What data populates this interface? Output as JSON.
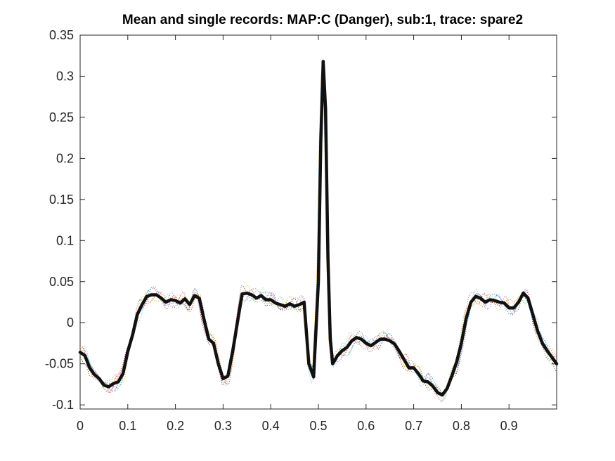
{
  "chart_data": {
    "type": "line",
    "title": "Mean and single records: MAP:C (Danger), sub:1, trace: spare2",
    "xlabel": "",
    "ylabel": "",
    "xlim": [
      0,
      1
    ],
    "ylim": [
      -0.105,
      0.35
    ],
    "grid": false,
    "legend": "none",
    "x_ticks": [
      0,
      0.1,
      0.2,
      0.3,
      0.4,
      0.5,
      0.6,
      0.7,
      0.8,
      0.9
    ],
    "x_tick_labels": [
      "0",
      "0.1",
      "0.2",
      "0.3",
      "0.4",
      "0.5",
      "0.6",
      "0.7",
      "0.8",
      "0.9"
    ],
    "y_ticks": [
      -0.1,
      -0.05,
      0,
      0.05,
      0.1,
      0.15,
      0.2,
      0.25,
      0.3,
      0.35
    ],
    "y_tick_labels": [
      "-0.1",
      "-0.05",
      "0",
      "0.05",
      "0.1",
      "0.15",
      "0.2",
      "0.25",
      "0.3",
      "0.35"
    ],
    "series": [
      {
        "style": "thick-solid",
        "color": "#111111",
        "x": [
          0,
          0.01,
          0.02,
          0.03,
          0.04,
          0.05,
          0.06,
          0.07,
          0.08,
          0.09,
          0.1,
          0.11,
          0.12,
          0.13,
          0.14,
          0.15,
          0.16,
          0.17,
          0.18,
          0.19,
          0.2,
          0.21,
          0.22,
          0.23,
          0.24,
          0.25,
          0.26,
          0.27,
          0.28,
          0.29,
          0.3,
          0.31,
          0.32,
          0.33,
          0.34,
          0.35,
          0.36,
          0.37,
          0.38,
          0.39,
          0.4,
          0.41,
          0.42,
          0.43,
          0.44,
          0.45,
          0.46,
          0.47,
          0.48,
          0.49,
          0.5,
          0.505,
          0.51,
          0.515,
          0.52,
          0.525,
          0.53,
          0.54,
          0.55,
          0.56,
          0.57,
          0.58,
          0.59,
          0.6,
          0.61,
          0.62,
          0.63,
          0.64,
          0.65,
          0.66,
          0.67,
          0.68,
          0.69,
          0.7,
          0.71,
          0.72,
          0.73,
          0.74,
          0.75,
          0.76,
          0.77,
          0.78,
          0.79,
          0.8,
          0.81,
          0.82,
          0.83,
          0.84,
          0.85,
          0.86,
          0.87,
          0.88,
          0.89,
          0.9,
          0.91,
          0.92,
          0.93,
          0.94,
          0.95,
          0.96,
          0.97,
          0.98,
          0.99,
          1.0
        ],
        "y": [
          -0.036,
          -0.04,
          -0.055,
          -0.063,
          -0.068,
          -0.076,
          -0.078,
          -0.074,
          -0.072,
          -0.062,
          -0.035,
          -0.015,
          0.01,
          0.022,
          0.032,
          0.034,
          0.034,
          0.03,
          0.025,
          0.028,
          0.027,
          0.024,
          0.029,
          0.022,
          0.033,
          0.03,
          0.004,
          -0.02,
          -0.025,
          -0.05,
          -0.068,
          -0.065,
          -0.035,
          0.0,
          0.035,
          0.036,
          0.034,
          0.03,
          0.033,
          0.028,
          0.028,
          0.024,
          0.022,
          0.02,
          0.023,
          0.02,
          0.022,
          0.025,
          -0.05,
          -0.066,
          0.05,
          0.22,
          0.318,
          0.26,
          0.08,
          -0.02,
          -0.05,
          -0.04,
          -0.034,
          -0.03,
          -0.022,
          -0.018,
          -0.02,
          -0.025,
          -0.028,
          -0.024,
          -0.02,
          -0.02,
          -0.022,
          -0.026,
          -0.035,
          -0.045,
          -0.055,
          -0.055,
          -0.062,
          -0.071,
          -0.072,
          -0.077,
          -0.085,
          -0.088,
          -0.08,
          -0.065,
          -0.048,
          -0.025,
          0.005,
          0.025,
          0.032,
          0.03,
          0.025,
          0.028,
          0.027,
          0.025,
          0.024,
          0.018,
          0.018,
          0.025,
          0.036,
          0.03,
          0.01,
          -0.01,
          -0.025,
          -0.034,
          -0.042,
          -0.05
        ]
      }
    ]
  }
}
